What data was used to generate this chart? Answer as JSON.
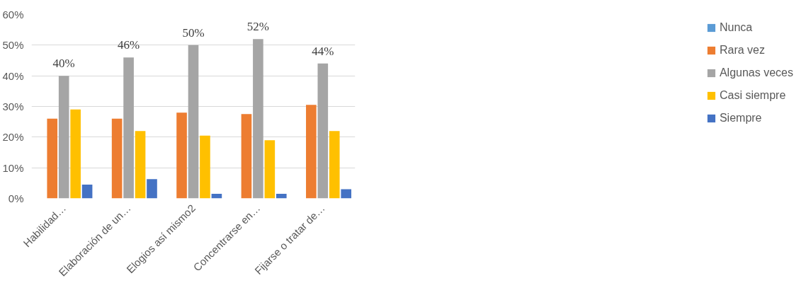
{
  "chart_data": {
    "type": "bar",
    "categories": [
      "Habilidad…",
      "Elaboración de un…",
      "Elogios así mismo2",
      "Concentrarse en…",
      "Fijarse o tratar de…"
    ],
    "series": [
      {
        "name": "Nunca",
        "color": "#5b9bd5",
        "values": [
          0,
          0,
          0,
          0,
          0
        ]
      },
      {
        "name": "Rara vez",
        "color": "#ed7d31",
        "values": [
          26,
          26,
          28,
          27.5,
          30.5
        ]
      },
      {
        "name": "Algunas veces",
        "color": "#a5a5a5",
        "values": [
          40,
          46,
          50,
          52,
          44
        ],
        "value_labels": [
          "40%",
          "46%",
          "50%",
          "52%",
          "44%"
        ]
      },
      {
        "name": "Casi siempre",
        "color": "#ffc000",
        "values": [
          29,
          22,
          20.5,
          19,
          22
        ]
      },
      {
        "name": "Siempre",
        "color": "#4472c4",
        "values": [
          4.5,
          6.3,
          1.5,
          1.5,
          3
        ]
      }
    ],
    "ylim": [
      0,
      60
    ],
    "yticks": [
      {
        "value": 0,
        "label": "0%"
      },
      {
        "value": 10,
        "label": "10%"
      },
      {
        "value": 20,
        "label": "20%"
      },
      {
        "value": 30,
        "label": "30%"
      },
      {
        "value": 40,
        "label": "40%"
      },
      {
        "value": 50,
        "label": "50%"
      },
      {
        "value": 60,
        "label": "60%"
      }
    ],
    "grid": "y",
    "legend": "right"
  }
}
